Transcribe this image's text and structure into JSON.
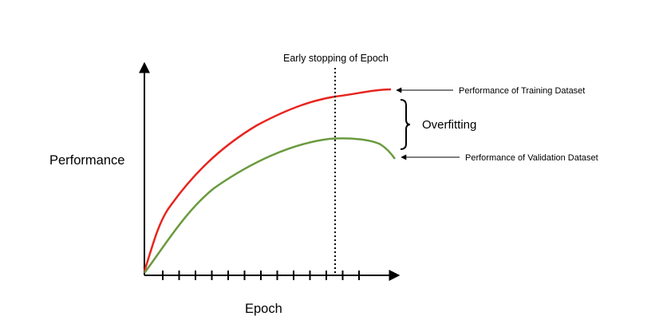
{
  "labels": {
    "ylabel": "Performance",
    "xlabel": "Epoch",
    "early_stop": "Early stopping of Epoch",
    "training": "Performance of Training Dataset",
    "validation": "Performance of Validation Dataset",
    "gap": "Overfitting"
  },
  "colors": {
    "training": "#e8241e",
    "validation": "#6a9a3e",
    "axis": "#000000"
  },
  "ticks": {
    "count": 13
  }
}
